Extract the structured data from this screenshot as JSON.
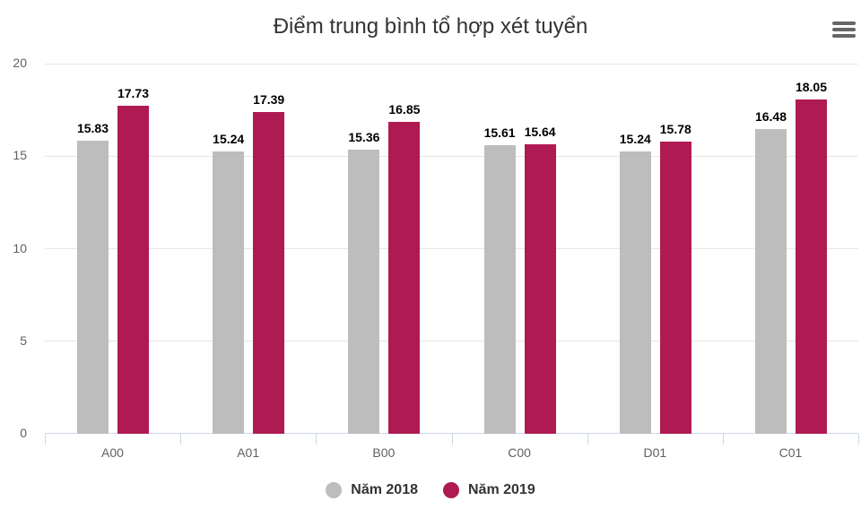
{
  "header": {
    "title": "Điểm trung bình tổ hợp xét tuyển",
    "menu_icon": "hamburger-menu-icon"
  },
  "colors": {
    "series_2018": "#bdbdbd",
    "series_2019": "#b01a52"
  },
  "legend": {
    "items": [
      {
        "label": "Năm 2018"
      },
      {
        "label": "Năm 2019"
      }
    ]
  },
  "axis": {
    "y_ticks": [
      "0",
      "5",
      "10",
      "15",
      "20"
    ],
    "x_ticks": [
      "A00",
      "A01",
      "B00",
      "C00",
      "D01",
      "C01"
    ]
  },
  "labels": {
    "s2018": [
      "15.83",
      "15.24",
      "15.36",
      "15.61",
      "15.24",
      "16.48"
    ],
    "s2019": [
      "17.73",
      "17.39",
      "16.85",
      "15.64",
      "15.78",
      "18.05"
    ]
  },
  "chart_data": {
    "type": "bar",
    "title": "Điểm trung bình tổ hợp xét tuyển",
    "categories": [
      "A00",
      "A01",
      "B00",
      "C00",
      "D01",
      "C01"
    ],
    "series": [
      {
        "name": "Năm 2018",
        "color": "#bdbdbd",
        "values": [
          15.83,
          15.24,
          15.36,
          15.61,
          15.24,
          16.48
        ]
      },
      {
        "name": "Năm 2019",
        "color": "#b01a52",
        "values": [
          17.73,
          17.39,
          16.85,
          15.64,
          15.78,
          18.05
        ]
      }
    ],
    "xlabel": "",
    "ylabel": "",
    "ylim": [
      0,
      20
    ],
    "yticks": [
      0,
      5,
      10,
      15,
      20
    ],
    "grid": true,
    "legend_position": "bottom",
    "data_labels": true
  }
}
